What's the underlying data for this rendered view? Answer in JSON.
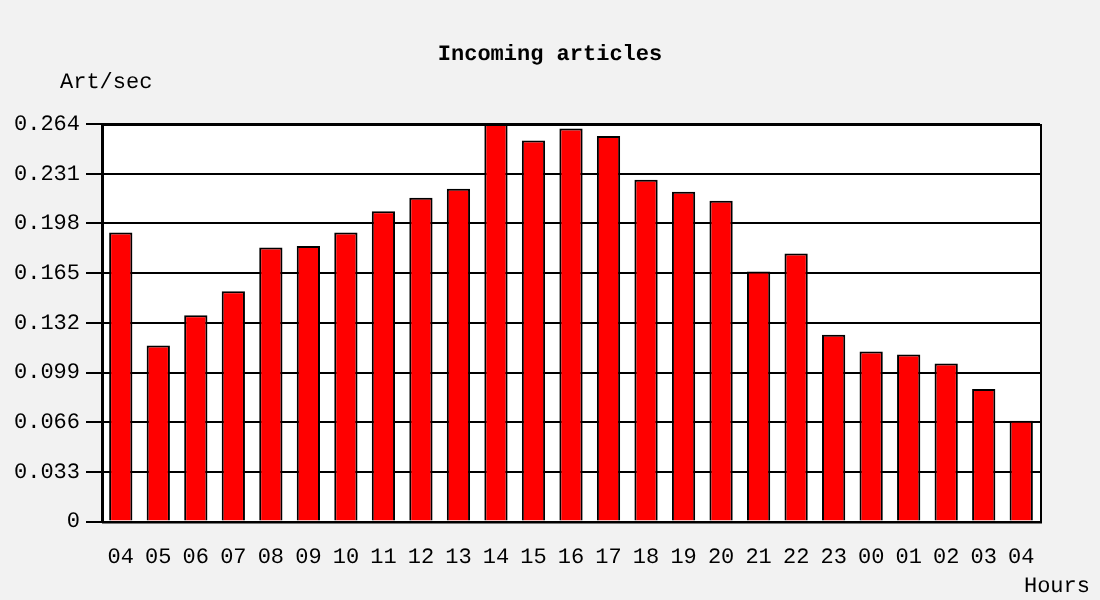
{
  "chart_data": {
    "type": "bar",
    "title": "Incoming articles",
    "ylabel": "Art/sec",
    "xlabel": "Hours",
    "categories": [
      "04",
      "05",
      "06",
      "07",
      "08",
      "09",
      "10",
      "11",
      "12",
      "13",
      "14",
      "15",
      "16",
      "17",
      "18",
      "19",
      "20",
      "21",
      "22",
      "23",
      "00",
      "01",
      "02",
      "03",
      "04"
    ],
    "values": [
      0.192,
      0.117,
      0.137,
      0.153,
      0.182,
      0.183,
      0.192,
      0.206,
      0.215,
      0.221,
      0.264,
      0.253,
      0.261,
      0.256,
      0.227,
      0.219,
      0.213,
      0.166,
      0.178,
      0.124,
      0.113,
      0.111,
      0.105,
      0.088,
      0.067
    ],
    "color": "#ff0000",
    "ylim": [
      0,
      0.264
    ],
    "yticks": [
      0,
      0.033,
      0.066,
      0.099,
      0.132,
      0.165,
      0.198,
      0.231,
      0.264
    ],
    "grid": "y",
    "legend": false
  }
}
